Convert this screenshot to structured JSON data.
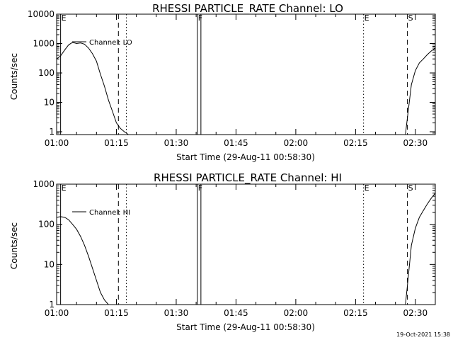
{
  "footer": {
    "timestamp": "19-Oct-2021 15:38"
  },
  "chart_data": [
    {
      "type": "line",
      "title": "RHESSI PARTICLE_RATE Channel: LO",
      "xlabel": "Start Time (29-Aug-11 00:58:30)",
      "ylabel": "Counts/sec",
      "yscale": "log",
      "xlim_minutes": [
        60,
        155
      ],
      "ylim": [
        0.8,
        10000
      ],
      "x_ticks": [
        "01:00",
        "01:15",
        "01:30",
        "01:45",
        "02:00",
        "02:15",
        "02:30"
      ],
      "y_ticks": [
        "1",
        "10",
        "100",
        "1000",
        "10000"
      ],
      "legend": {
        "label": "Channel: LO",
        "position": "top-left"
      },
      "markers": [
        {
          "label": "E",
          "minute": 61,
          "style": "solid"
        },
        {
          "label": "",
          "minute": 75.5,
          "style": "dashed"
        },
        {
          "label": "",
          "minute": 77.5,
          "style": "dotted"
        },
        {
          "label": "F",
          "minute": 95.3,
          "style": "solid"
        },
        {
          "label": "",
          "minute": 96.2,
          "style": "solid"
        },
        {
          "label": "E",
          "minute": 137,
          "style": "dotted"
        },
        {
          "label": "S",
          "minute": 148,
          "style": "dashed"
        },
        {
          "label": "",
          "minute": 155.5,
          "style": "dashdot"
        }
      ],
      "series": [
        {
          "values_x": [
            60,
            61,
            62,
            63,
            64,
            65,
            66,
            67,
            68,
            69,
            70,
            71,
            72,
            73,
            74,
            75,
            76,
            77,
            78,
            147.5,
            148,
            149,
            150,
            151,
            152,
            153,
            154,
            155
          ],
          "values_y": [
            300,
            380,
            600,
            900,
            1100,
            1000,
            1050,
            950,
            700,
            450,
            250,
            90,
            35,
            12,
            5,
            2,
            1.3,
            1.0,
            0.8,
            0.8,
            3,
            40,
            120,
            220,
            300,
            420,
            560,
            700
          ]
        }
      ]
    },
    {
      "type": "line",
      "title": "RHESSI PARTICLE_RATE Channel: HI",
      "xlabel": "Start Time (29-Aug-11 00:58:30)",
      "ylabel": "Counts/sec",
      "yscale": "log",
      "xlim_minutes": [
        60,
        155
      ],
      "ylim": [
        1,
        1000
      ],
      "x_ticks": [
        "01:00",
        "01:15",
        "01:30",
        "01:45",
        "02:00",
        "02:15",
        "02:30"
      ],
      "y_ticks": [
        "1",
        "10",
        "100",
        "1000"
      ],
      "legend": {
        "label": "Channel: HI",
        "position": "top-left"
      },
      "markers": [
        {
          "label": "E",
          "minute": 61,
          "style": "solid"
        },
        {
          "label": "",
          "minute": 75.5,
          "style": "dashed"
        },
        {
          "label": "",
          "minute": 77.5,
          "style": "dotted"
        },
        {
          "label": "F",
          "minute": 95.3,
          "style": "solid"
        },
        {
          "label": "",
          "minute": 96.2,
          "style": "solid"
        },
        {
          "label": "E",
          "minute": 137,
          "style": "dotted"
        },
        {
          "label": "S",
          "minute": 148,
          "style": "dashed"
        },
        {
          "label": "",
          "minute": 155.5,
          "style": "dashdot"
        }
      ],
      "series": [
        {
          "values_x": [
            60,
            61,
            62,
            63,
            64,
            65,
            66,
            67,
            68,
            69,
            70,
            71,
            72,
            73,
            73.5,
            147.5,
            148,
            149,
            150,
            151,
            152,
            153,
            154,
            155
          ],
          "values_y": [
            150,
            155,
            150,
            130,
            100,
            75,
            50,
            30,
            16,
            8,
            4,
            2,
            1.3,
            1.0,
            1.0,
            1.0,
            3,
            30,
            80,
            150,
            220,
            320,
            450,
            600
          ]
        }
      ]
    }
  ]
}
